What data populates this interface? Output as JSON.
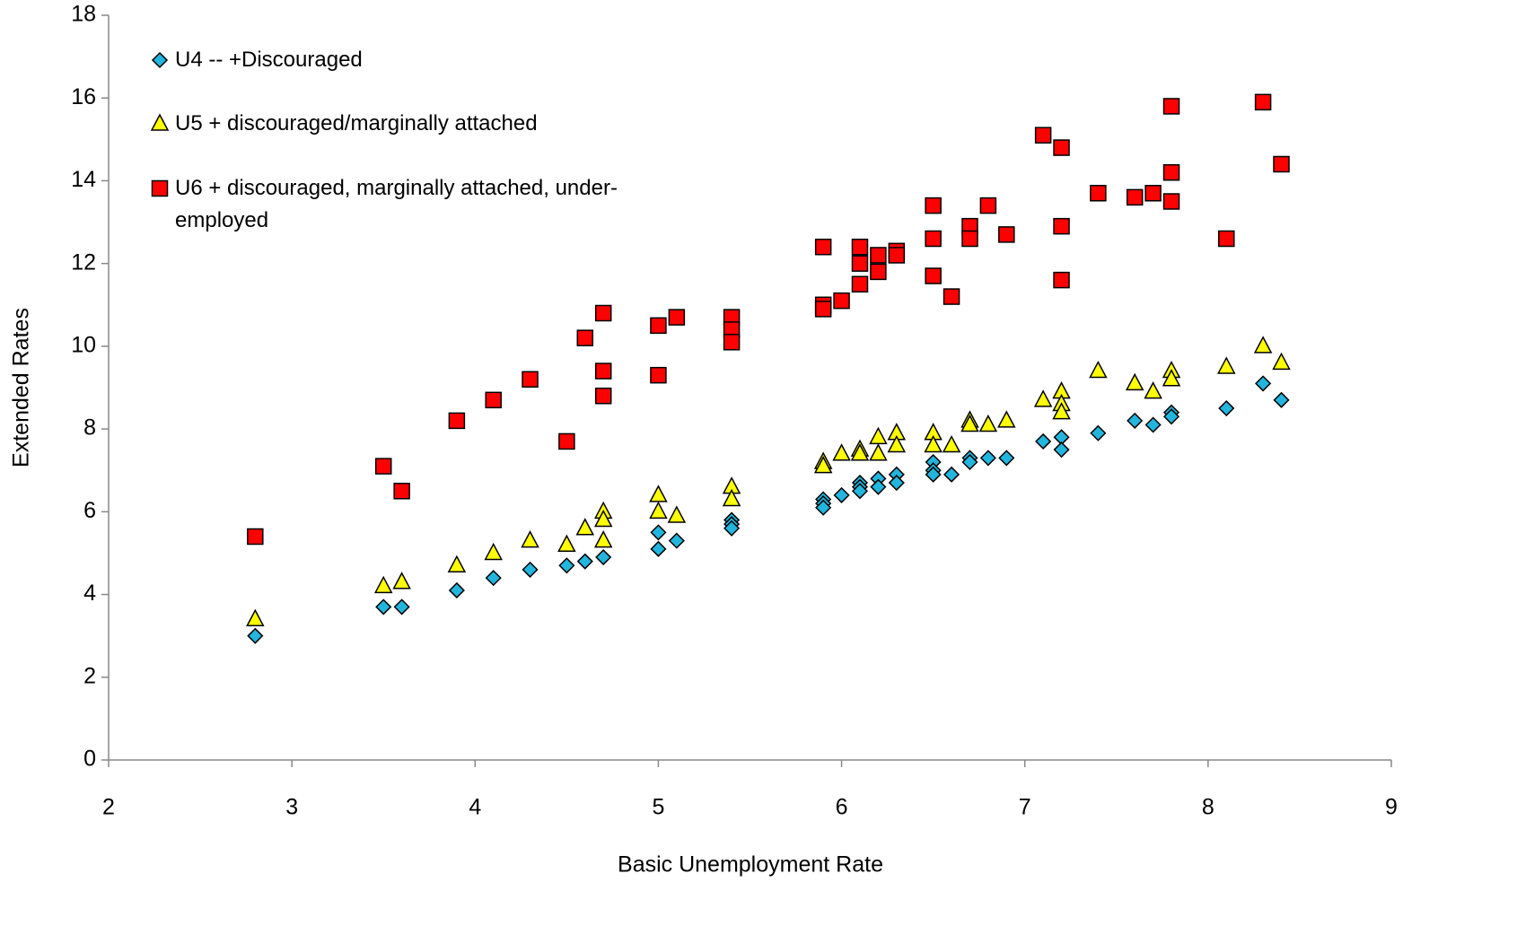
{
  "chart_data": {
    "type": "scatter",
    "x_label": "Basic Unemployment Rate",
    "y_label": "Extended Rates",
    "xlim": [
      2,
      9
    ],
    "xticks": [
      2,
      3,
      4,
      5,
      6,
      7,
      8,
      9
    ],
    "ylim": [
      0,
      18
    ],
    "yticks": [
      0,
      2,
      4,
      6,
      8,
      10,
      12,
      14,
      16,
      18
    ],
    "legend": "upper-left",
    "series": [
      {
        "name": "U4 -- +Discouraged",
        "color": "#22b5dd",
        "marker": "diamond",
        "x": [
          2.8,
          3.5,
          3.6,
          3.9,
          4.1,
          4.3,
          4.5,
          4.6,
          4.7,
          5.0,
          5.0,
          5.1,
          5.4,
          5.4,
          5.4,
          5.9,
          5.9,
          5.9,
          6.0,
          6.1,
          6.1,
          6.1,
          6.2,
          6.2,
          6.3,
          6.3,
          6.5,
          6.5,
          6.5,
          6.6,
          6.7,
          6.7,
          6.8,
          6.9,
          7.1,
          7.2,
          7.2,
          7.4,
          7.6,
          7.7,
          7.8,
          7.8,
          8.1,
          8.3,
          8.4
        ],
        "values": [
          3.0,
          3.7,
          3.7,
          4.1,
          4.4,
          4.6,
          4.7,
          4.8,
          4.9,
          5.5,
          5.1,
          5.3,
          5.8,
          5.7,
          5.6,
          6.3,
          6.2,
          6.1,
          6.4,
          6.7,
          6.6,
          6.5,
          6.8,
          6.6,
          6.9,
          6.7,
          7.2,
          7.0,
          6.9,
          6.9,
          7.3,
          7.2,
          7.3,
          7.3,
          7.7,
          7.8,
          7.5,
          7.9,
          8.2,
          8.1,
          8.4,
          8.3,
          8.5,
          9.1,
          8.7
        ]
      },
      {
        "name": "U5 + discouraged/marginally attached",
        "color": "#ffff00",
        "marker": "triangle",
        "x": [
          2.8,
          3.5,
          3.6,
          3.9,
          4.1,
          4.3,
          4.5,
          4.6,
          4.7,
          4.7,
          4.7,
          5.0,
          5.0,
          5.1,
          5.4,
          5.4,
          5.9,
          5.9,
          6.0,
          6.1,
          6.1,
          6.2,
          6.2,
          6.3,
          6.3,
          6.5,
          6.5,
          6.6,
          6.7,
          6.7,
          6.8,
          6.9,
          7.1,
          7.2,
          7.2,
          7.2,
          7.4,
          7.6,
          7.7,
          7.8,
          7.8,
          8.1,
          8.3,
          8.4
        ],
        "values": [
          3.4,
          4.2,
          4.3,
          4.7,
          5.0,
          5.3,
          5.2,
          5.6,
          6.0,
          5.8,
          5.3,
          6.4,
          6.0,
          5.9,
          6.6,
          6.3,
          7.2,
          7.1,
          7.4,
          7.5,
          7.4,
          7.8,
          7.4,
          7.9,
          7.6,
          7.9,
          7.6,
          7.6,
          8.2,
          8.1,
          8.1,
          8.2,
          8.7,
          8.9,
          8.6,
          8.4,
          9.4,
          9.1,
          8.9,
          9.4,
          9.2,
          9.5,
          10.0,
          9.6
        ]
      },
      {
        "name": "U6 + discouraged, marginally attached, under-employed",
        "color": "#ff0000",
        "marker": "square",
        "x": [
          2.8,
          3.5,
          3.6,
          3.9,
          4.1,
          4.3,
          4.5,
          4.6,
          4.7,
          4.7,
          4.7,
          5.0,
          5.0,
          5.1,
          5.4,
          5.4,
          5.4,
          5.9,
          5.9,
          5.9,
          6.0,
          6.1,
          6.1,
          6.1,
          6.2,
          6.2,
          6.3,
          6.3,
          6.5,
          6.5,
          6.5,
          6.6,
          6.7,
          6.7,
          6.8,
          6.9,
          7.1,
          7.2,
          7.2,
          7.2,
          7.4,
          7.6,
          7.7,
          7.8,
          7.8,
          7.8,
          8.1,
          8.3,
          8.4
        ],
        "values": [
          5.4,
          7.1,
          6.5,
          8.2,
          8.7,
          9.2,
          7.7,
          10.2,
          10.8,
          9.4,
          8.8,
          10.5,
          9.3,
          10.7,
          10.7,
          10.4,
          10.1,
          12.4,
          11.0,
          10.9,
          11.1,
          12.4,
          12.0,
          11.5,
          12.2,
          11.8,
          12.3,
          12.2,
          13.4,
          12.6,
          11.7,
          11.2,
          12.9,
          12.6,
          13.4,
          12.7,
          15.1,
          14.8,
          12.9,
          11.6,
          13.7,
          13.6,
          13.7,
          15.8,
          14.2,
          13.5,
          12.6,
          15.9,
          14.4
        ]
      }
    ]
  }
}
